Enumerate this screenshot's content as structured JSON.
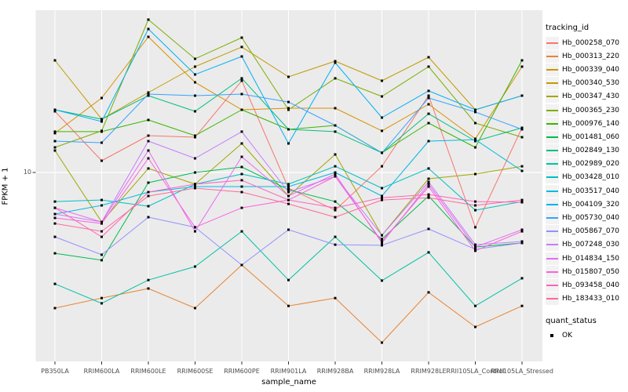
{
  "chart_data": {
    "type": "line",
    "title": "",
    "xlabel": "sample_name",
    "ylabel": "FPKM + 1",
    "y_scale": "log10",
    "y_ticks": [
      {
        "label": "10",
        "value": 10
      }
    ],
    "y_range_approx": [
      1.9,
      42
    ],
    "grid": "major-on",
    "panel_background": "#EBEBEB",
    "grid_color": "#FFFFFF",
    "axis_text_color": "#4D4D4D",
    "point_marker": "filled-square",
    "point_color": "#000000",
    "categories": [
      "PB350LA",
      "RRIM600LA",
      "RRIM600LE",
      "RRIM600SE",
      "RRIM600PE",
      "RRIM901LA",
      "RRIM928BA",
      "RRIM928LA",
      "RRIM928LE",
      "RRII105LA_Control",
      "RRII105LA_Stressed"
    ],
    "series": [
      {
        "name": "Hb_000258_070",
        "color": "#F8766D",
        "values": [
          17.23,
          11.1,
          13.88,
          13.69,
          22.63,
          8.7,
          7.15,
          10.57,
          19.82,
          6.14,
          14.88
        ]
      },
      {
        "name": "Hb_000313_220",
        "color": "#EA8331",
        "values": [
          2.99,
          3.27,
          3.56,
          2.99,
          4.39,
          3.05,
          3.27,
          2.2,
          3.44,
          2.53,
          3.05
        ]
      },
      {
        "name": "Hb_000339_040",
        "color": "#D89000",
        "values": [
          14.18,
          19.4,
          33.44,
          22.31,
          17.48,
          17.72,
          17.72,
          14.48,
          18.35,
          13.5,
          25.65
        ]
      },
      {
        "name": "Hb_000340_530",
        "color": "#C09B00",
        "values": [
          27.12,
          16.07,
          20.38,
          25.65,
          30.55,
          23.43,
          26.93,
          22.63,
          27.89,
          17.48,
          19.82
        ]
      },
      {
        "name": "Hb_000347_430",
        "color": "#A3A500",
        "values": [
          12.16,
          6.44,
          10.36,
          9.01,
          12.95,
          8.11,
          11.74,
          5.72,
          9.46,
          9.86,
          10.57
        ]
      },
      {
        "name": "Hb_000365_230",
        "color": "#7CAE00",
        "values": [
          12.5,
          14.48,
          38.98,
          27.51,
          33.21,
          17.48,
          23.11,
          19.68,
          25.65,
          15.52,
          13.69
        ]
      },
      {
        "name": "Hb_000976_140",
        "color": "#39B600",
        "values": [
          14.38,
          14.38,
          15.96,
          13.88,
          17.48,
          14.68,
          15.2,
          11.91,
          15.52,
          12.5,
          27.12
        ]
      },
      {
        "name": "Hb_001481_060",
        "color": "#00BB4E",
        "values": [
          4.87,
          4.58,
          9.13,
          10.0,
          10.5,
          8.58,
          7.72,
          5.53,
          8.11,
          5.15,
          5.34
        ]
      },
      {
        "name": "Hb_002849_130",
        "color": "#00BF7D",
        "values": [
          17.48,
          16.07,
          19.82,
          17.23,
          23.11,
          14.68,
          14.38,
          11.91,
          16.87,
          13.22,
          14.88
        ]
      },
      {
        "name": "Hb_002989_020",
        "color": "#00C1A3",
        "values": [
          3.71,
          3.12,
          3.84,
          4.33,
          5.92,
          3.84,
          5.64,
          3.82,
          4.91,
          3.05,
          3.9
        ]
      },
      {
        "name": "Hb_003428_010",
        "color": "#00BFC4",
        "values": [
          7.72,
          7.83,
          7.41,
          9.01,
          9.86,
          9.01,
          10.57,
          8.7,
          10.36,
          7.15,
          7.72
        ]
      },
      {
        "name": "Hb_003517_040",
        "color": "#00BAE0",
        "values": [
          6.91,
          7.46,
          8.4,
          8.82,
          8.82,
          8.82,
          10.0,
          8.11,
          13.22,
          13.4,
          10.14
        ]
      },
      {
        "name": "Hb_004109_320",
        "color": "#00B0F6",
        "values": [
          17.48,
          15.74,
          35.86,
          23.92,
          28.09,
          12.95,
          26.56,
          16.3,
          20.67,
          17.48,
          19.82
        ]
      },
      {
        "name": "Hb_005730_040",
        "color": "#35A2FF",
        "values": [
          13.22,
          13.04,
          20.09,
          19.82,
          20.09,
          18.73,
          15.2,
          11.91,
          19.4,
          17.12,
          14.68
        ]
      },
      {
        "name": "Hb_005867_070",
        "color": "#9590FF",
        "values": [
          5.64,
          4.81,
          6.72,
          6.14,
          4.39,
          6.01,
          5.26,
          5.23,
          6.05,
          5.05,
          5.34
        ]
      },
      {
        "name": "Hb_007248_030",
        "color": "#C77CFF",
        "values": [
          6.91,
          6.44,
          13.22,
          11.34,
          14.38,
          8.4,
          9.66,
          5.72,
          9.2,
          5.26,
          5.41
        ]
      },
      {
        "name": "Hb_014834_150",
        "color": "#E76BF3",
        "values": [
          7.3,
          6.44,
          12.16,
          5.92,
          11.5,
          8.11,
          9.86,
          5.34,
          9.01,
          5.15,
          6.01
        ]
      },
      {
        "name": "Hb_015807_050",
        "color": "#FA62DB",
        "values": [
          6.67,
          6.35,
          11.34,
          6.14,
          7.3,
          7.83,
          9.66,
          5.41,
          8.82,
          4.98,
          5.92
        ]
      },
      {
        "name": "Hb_093458_040",
        "color": "#FF62BC",
        "values": [
          7.3,
          5.64,
          8.4,
          9.01,
          9.33,
          7.83,
          7.3,
          7.99,
          8.22,
          7.72,
          7.67
        ]
      },
      {
        "name": "Hb_183433_010",
        "color": "#FF6A98",
        "values": [
          6.35,
          5.92,
          8.11,
          8.7,
          8.4,
          7.56,
          6.72,
          7.83,
          7.99,
          7.46,
          7.83
        ]
      }
    ],
    "legend": {
      "position": "right",
      "tracking_title": "tracking_id",
      "quant_title": "quant_status",
      "quant_value": "OK"
    }
  }
}
